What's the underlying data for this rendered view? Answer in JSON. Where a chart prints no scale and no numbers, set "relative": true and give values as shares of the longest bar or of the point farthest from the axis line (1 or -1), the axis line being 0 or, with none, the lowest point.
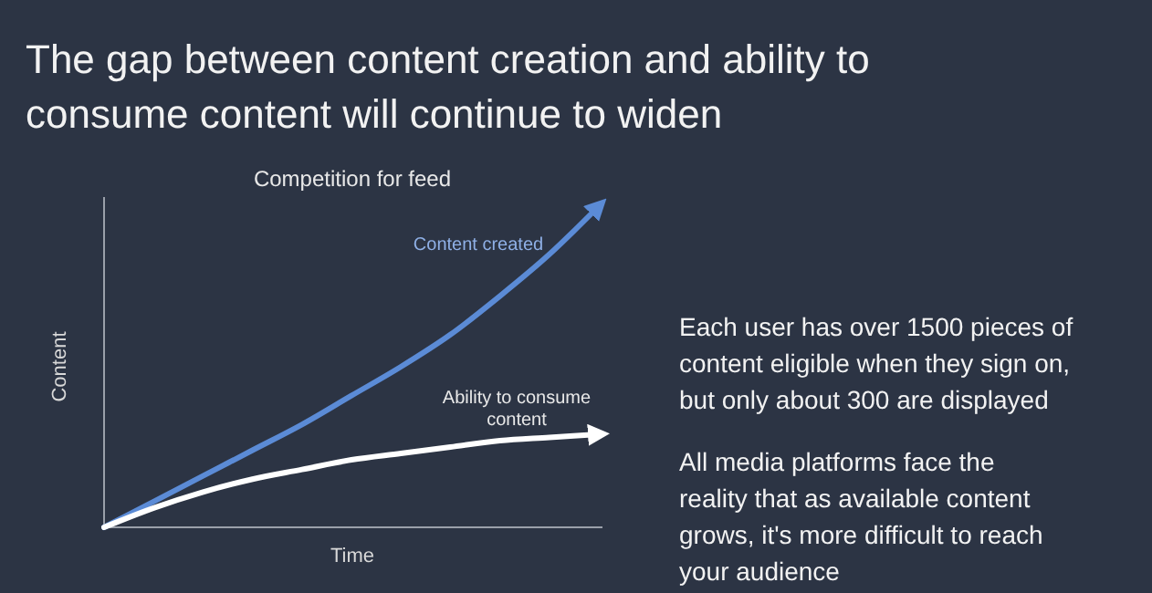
{
  "chart_data": {
    "type": "line",
    "title": "The gap between content creation and ability to consume content will continue to widen",
    "subtitle": "Competition for feed",
    "xlabel": "Time",
    "ylabel": "Content",
    "relative": true,
    "legend": false,
    "marker": "none",
    "categories": [
      null,
      null,
      null,
      null,
      null,
      null,
      null,
      null,
      null,
      null,
      null
    ],
    "series": [
      {
        "name": "Content created",
        "color": "#5b8bd6",
        "values": [
          0,
          0.08,
          0.16,
          0.24,
          0.32,
          0.41,
          0.5,
          0.6,
          0.72,
          0.85,
          1
        ]
      },
      {
        "name": "Ability to consume content",
        "color": "#ffffff",
        "values": [
          0,
          0.06,
          0.11,
          0.15,
          0.18,
          0.21,
          0.23,
          0.25,
          0.27,
          0.28,
          0.29
        ]
      }
    ],
    "annotations": [
      "Each user has over 1500 pieces of content eligible when they sign on, but only about 300 are displayed",
      "All media platforms face the reality that as available content grows, it's more difficult to reach your audience"
    ]
  }
}
